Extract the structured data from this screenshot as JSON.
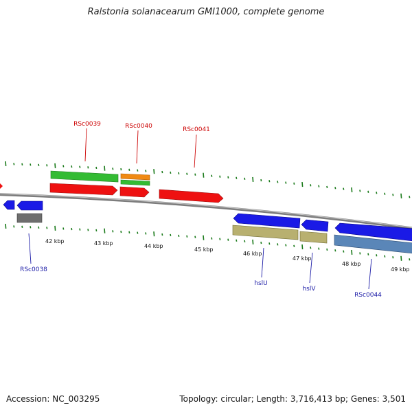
{
  "title": "Ralstonia solanacearum GMI1000, complete genome",
  "footer": {
    "accession": "Accession: NC_003295",
    "summary": "Topology: circular; Length: 3,716,413 bp; Genes: 3,501"
  },
  "colors": {
    "forward_label": "#cc0000",
    "reverse_label": "#1a1aa6",
    "tick": "#1a7a1a",
    "backbone": "#7d7d7d",
    "cds_forward": "#ee1111",
    "cds_reverse": "#1a1ae6",
    "gene_forward": "#33bb33",
    "gene_reverse_khaki": "#b8b070",
    "gene_reverse_steel": "#5a86b8",
    "gene_reverse_grey": "#6e6e6e",
    "gene_orange": "#f08a12"
  },
  "scale_labels": [
    "42 kbp",
    "43 kbp",
    "44 kbp",
    "45 kbp",
    "46 kbp",
    "47 kbp",
    "48 kbp",
    "49 kbp"
  ],
  "gene_labels_forward": [
    "RSc0039",
    "RSc0040",
    "RSc0041"
  ],
  "gene_labels_reverse": [
    "RSc0038",
    "hslU",
    "hslV",
    "RSc0044"
  ]
}
